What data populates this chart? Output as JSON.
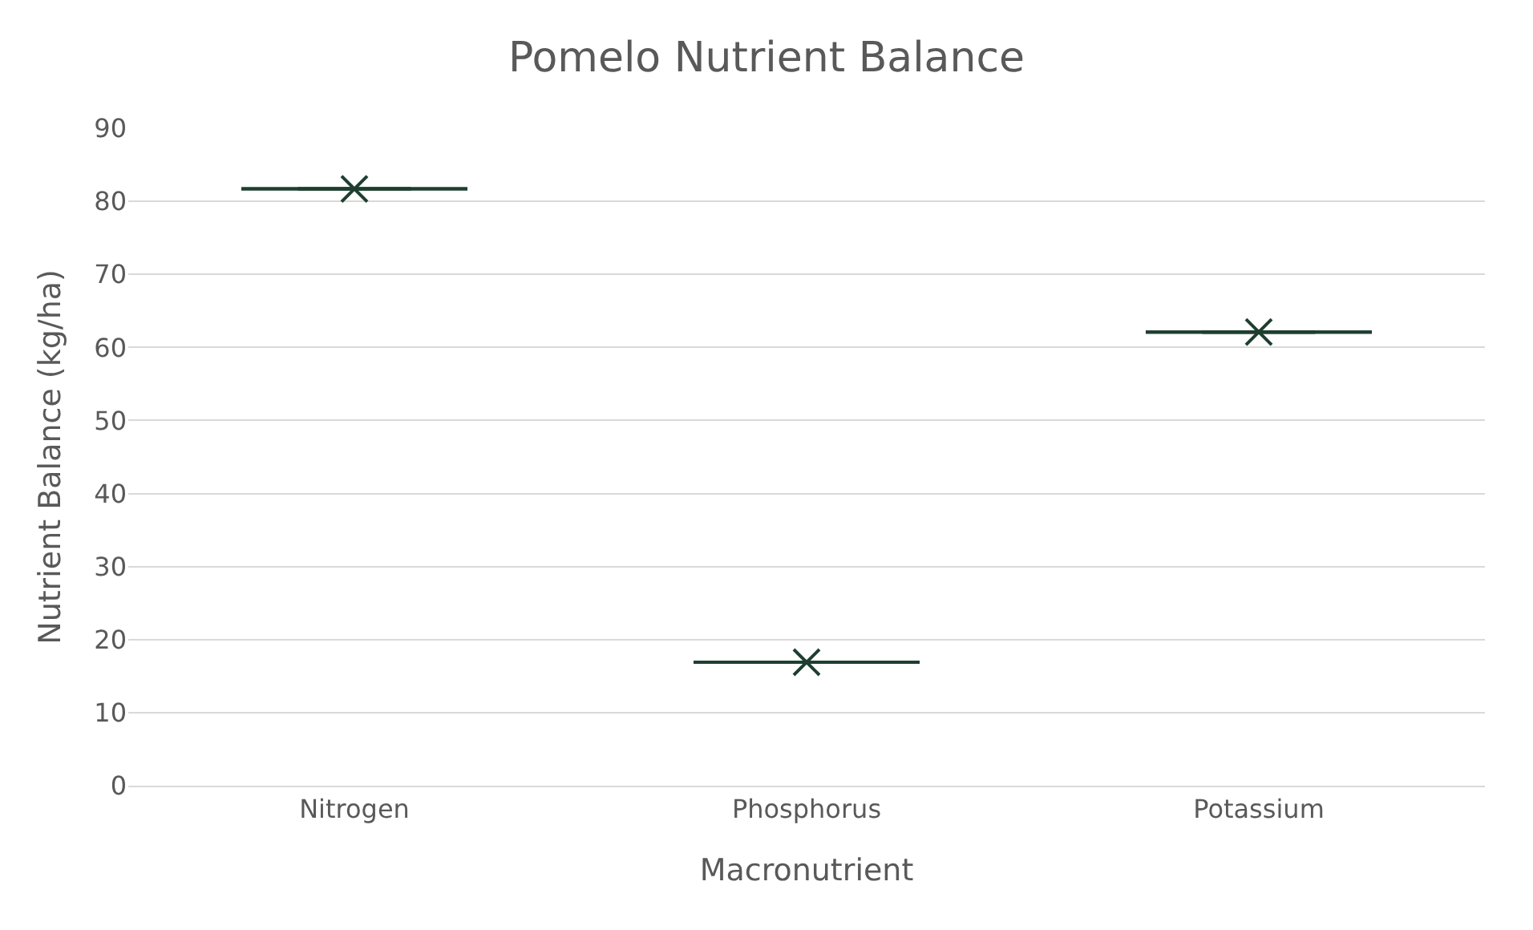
{
  "chart_data": {
    "type": "box",
    "title": "Pomelo Nutrient Balance",
    "xlabel": "Macronutrient",
    "ylabel": "Nutrient Balance (kg/ha)",
    "categories": [
      "Nitrogen",
      "Phosphorus",
      "Potassium"
    ],
    "boxes": [
      {
        "low": 81.7,
        "q1": 81.7,
        "median": 81.7,
        "q3": 81.7,
        "high": 81.7,
        "mean": 81.7
      },
      {
        "low": 16.9,
        "q1": 16.9,
        "median": 16.9,
        "q3": 16.9,
        "high": 16.9,
        "mean": 16.9
      },
      {
        "low": 62.1,
        "q1": 62.1,
        "median": 62.1,
        "q3": 62.1,
        "high": 62.1,
        "mean": 62.1
      }
    ],
    "color": "#1e3f30",
    "ylim": [
      0,
      90
    ],
    "yticks": [
      0,
      10,
      20,
      30,
      40,
      50,
      60,
      70,
      80,
      90
    ],
    "grid": "y",
    "marker": "cross"
  }
}
